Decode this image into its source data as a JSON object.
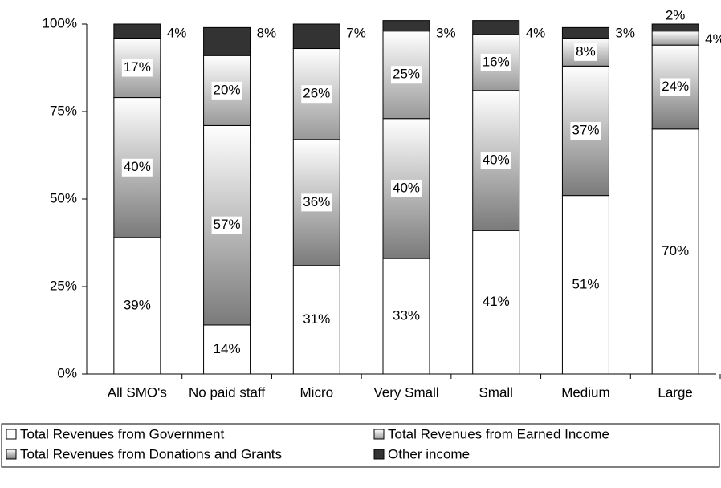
{
  "chart_data": {
    "type": "stacked-bar",
    "categories": [
      "All SMO's",
      "No paid staff",
      "Micro",
      "Very Small",
      "Small",
      "Medium",
      "Large"
    ],
    "series": [
      {
        "name": "Total Revenues from Government",
        "color": "#ffffff",
        "values": [
          39,
          14,
          31,
          33,
          41,
          51,
          70
        ],
        "value_labels": [
          "39%",
          "14%",
          "31%",
          "33%",
          "41%",
          "51%",
          "70%"
        ]
      },
      {
        "name": "Total Revenues from Donations and Grants",
        "color": "#7a7a7a",
        "values": [
          40,
          57,
          36,
          40,
          40,
          37,
          24
        ],
        "value_labels": [
          "40%",
          "57%",
          "36%",
          "40%",
          "40%",
          "37%",
          "24%"
        ]
      },
      {
        "name": "Total Revenues from Earned Income",
        "color": "#999999",
        "values": [
          17,
          20,
          26,
          25,
          16,
          8,
          4
        ],
        "value_labels": [
          "17%",
          "20%",
          "26%",
          "25%",
          "16%",
          "8%",
          "4%"
        ]
      },
      {
        "name": "Other income",
        "color": "#333333",
        "values": [
          4,
          8,
          7,
          3,
          4,
          3,
          2
        ],
        "value_labels": [
          "4%",
          "8%",
          "7%",
          "3%",
          "4%",
          "3%",
          "2%"
        ]
      }
    ],
    "ylim": [
      0,
      100
    ],
    "yticks": [
      {
        "value": 0,
        "label": "0%"
      },
      {
        "value": 25,
        "label": "25%"
      },
      {
        "value": 50,
        "label": "50%"
      },
      {
        "value": 75,
        "label": "75%"
      },
      {
        "value": 100,
        "label": "100%"
      }
    ]
  }
}
